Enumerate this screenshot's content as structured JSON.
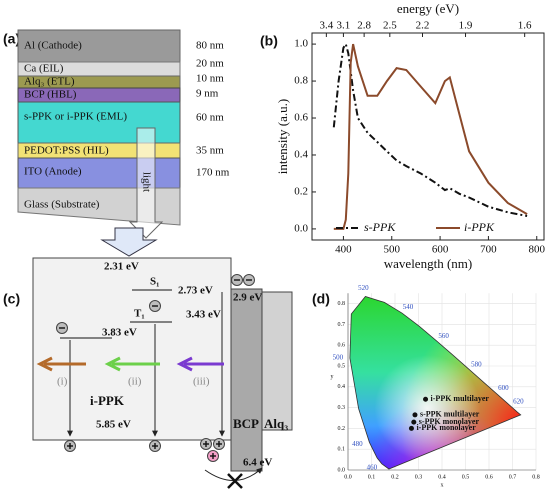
{
  "panel_labels": [
    "(a)",
    "(b)",
    "(c)",
    "(d)"
  ],
  "device": {
    "layers": [
      {
        "name": "Al (Cathode)",
        "thickness": "80 nm"
      },
      {
        "name": "Ca (EIL)",
        "thickness": "20 nm"
      },
      {
        "name": "Alq₃ (ETL)",
        "thickness": "10 nm"
      },
      {
        "name": "BCP (HBL)",
        "thickness": "9 nm"
      },
      {
        "name": "s-PPK or i-PPK (EML)",
        "thickness": "60 nm"
      },
      {
        "name": "PEDOT:PSS (HIL)",
        "thickness": "35 nm"
      },
      {
        "name": "ITO (Anode)",
        "thickness": "170 nm"
      },
      {
        "name": "Glass (Substrate)"
      }
    ],
    "light": "light"
  },
  "energy_diagram": {
    "lumo": "2.31 eV",
    "s1_label": "S₁",
    "s1": "2.73 eV",
    "t1_label": "T₁",
    "t1": "3.43 eV",
    "trap": "3.83 eV",
    "homo": "5.85 eV",
    "bcp_lumo": "2.9 eV",
    "bcp_homo": "6.4 eV",
    "material": "i-PPK",
    "bcp": "BCP",
    "alq3": "Alq₃",
    "paths": [
      "(i)",
      "(ii)",
      "(iii)"
    ]
  },
  "chart_data": {
    "type": "line",
    "xlabel": "wavelength (nm)",
    "ylabel": "intensity (a.u.)",
    "x2label": "energy (eV)",
    "x": [
      380,
      390,
      400,
      405,
      410,
      415,
      420,
      430,
      450,
      470,
      490,
      510,
      530,
      560,
      590,
      610,
      620,
      640,
      660,
      700,
      740,
      780
    ],
    "series": [
      {
        "name": "s-PPK",
        "color": "#111111",
        "dash": "dashdot",
        "values": [
          0.55,
          0.8,
          0.98,
          1.0,
          0.95,
          0.85,
          0.75,
          0.6,
          0.52,
          0.47,
          0.42,
          0.37,
          0.34,
          0.3,
          0.25,
          0.21,
          0.22,
          0.19,
          0.17,
          0.12,
          0.09,
          0.07
        ]
      },
      {
        "name": "i-PPK",
        "color": "#8b4a2b",
        "values": [
          0.0,
          0.0,
          0.0,
          0.05,
          0.3,
          0.9,
          1.0,
          0.88,
          0.72,
          0.72,
          0.8,
          0.87,
          0.86,
          0.77,
          0.68,
          0.8,
          0.82,
          0.62,
          0.42,
          0.25,
          0.14,
          0.08
        ]
      }
    ],
    "xlim": [
      335,
      815
    ],
    "xticks": [
      400,
      500,
      600,
      700,
      800
    ],
    "ylim": [
      -0.06,
      1.06
    ],
    "yticks": [
      {
        "value": 0,
        "label": "0.0"
      },
      0.2,
      0.4,
      0.6,
      0.8,
      {
        "value": 1,
        "label": "1.0"
      }
    ],
    "x2ticks": [
      3.4,
      3.1,
      2.8,
      2.5,
      2.2,
      1.9,
      1.6
    ],
    "legend": "lower center"
  },
  "cie": {
    "xlabel": "x",
    "ylabel": "y",
    "xticks": [
      {
        "value": 0,
        "label": "0.0"
      },
      0.1,
      0.2,
      0.3,
      0.4,
      0.5,
      0.6,
      0.7,
      0.8
    ],
    "yticks": [
      {
        "value": 0,
        "label": "0.0"
      },
      0.1,
      0.2,
      0.3,
      0.4,
      0.5,
      0.6,
      0.7,
      0.8
    ],
    "locus_labels": [
      "460",
      "480",
      "500",
      "520",
      "540",
      "560",
      "580",
      "600",
      "620"
    ],
    "points": [
      {
        "name": "i-PPK multilayer",
        "x": 0.33,
        "y": 0.34
      },
      {
        "name": "s-PPK multilayer",
        "x": 0.285,
        "y": 0.265
      },
      {
        "name": "s-PPK monolayer",
        "x": 0.28,
        "y": 0.23
      },
      {
        "name": "i-PPK monolayer",
        "x": 0.27,
        "y": 0.2
      }
    ]
  }
}
